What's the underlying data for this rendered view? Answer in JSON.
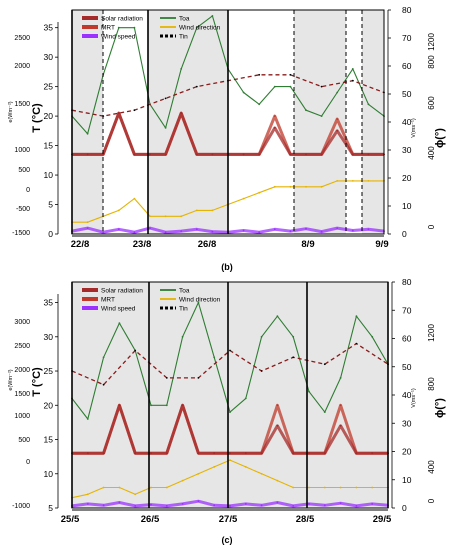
{
  "chart_data": [
    {
      "type": "line",
      "panel_label": "(b)",
      "categories": [
        "22/8",
        "23/8",
        "26/8",
        "8/9",
        "9/9"
      ],
      "left_axes": [
        {
          "label": "T (°C)",
          "ticks": [
            "0",
            "5",
            "10",
            "15",
            "20",
            "25",
            "30",
            "35"
          ]
        },
        {
          "label": "e(Wm⁻²)",
          "ticks": [
            "-1500",
            "-500",
            "0",
            "500",
            "1000",
            "1500",
            "2000",
            "2500"
          ]
        }
      ],
      "right_axes": [
        {
          "label": "V(ms⁻¹)",
          "ticks": [
            "0",
            "10",
            "20",
            "30",
            "40",
            "50",
            "60",
            "70",
            "80"
          ]
        },
        {
          "label": "ϕ(°)",
          "ticks": [
            "0",
            "400",
            "600",
            "800",
            "1200"
          ]
        }
      ],
      "legend": [
        {
          "name": "Solar radiation",
          "color": "#a52a2a",
          "style": "thick"
        },
        {
          "name": "Toa",
          "color": "#2e7d32",
          "style": "solid"
        },
        {
          "name": "MRT",
          "color": "#c0392b",
          "style": "thick"
        },
        {
          "name": "Wind direction",
          "color": "#e5b400",
          "style": "solid"
        },
        {
          "name": "Wind speed",
          "color": "#9b30ff",
          "style": "thick"
        },
        {
          "name": "Tin",
          "color": "#000000",
          "style": "dashed"
        }
      ],
      "series": [
        {
          "name": "Toa",
          "x": [
            0,
            5,
            10,
            15,
            20,
            25,
            30,
            35,
            40,
            45,
            50,
            55,
            60,
            65,
            70,
            75,
            80,
            85,
            90,
            95,
            100
          ],
          "y": [
            20,
            17,
            27,
            35,
            35,
            22,
            18,
            28,
            35,
            37,
            28,
            24,
            22,
            25,
            25,
            21,
            20,
            24,
            28,
            22,
            20
          ]
        },
        {
          "name": "Tin",
          "x": [
            0,
            10,
            20,
            30,
            40,
            50,
            60,
            70,
            80,
            90,
            100
          ],
          "y": [
            21,
            20,
            21,
            23,
            25,
            26,
            27,
            27,
            25,
            26,
            24
          ]
        },
        {
          "name": "MRT",
          "x": [
            0,
            5,
            10,
            15,
            20,
            25,
            30,
            35,
            40,
            45,
            50,
            55,
            60,
            65,
            70,
            75,
            80,
            85,
            90,
            95,
            100
          ],
          "y": [
            13.5,
            13.5,
            13.5,
            20.5,
            13.5,
            13.5,
            13.5,
            20.5,
            13.5,
            13.5,
            13.5,
            13.5,
            13.5,
            20,
            13.5,
            13.5,
            13.5,
            19.5,
            13.5,
            13.5,
            13.5
          ]
        },
        {
          "name": "Solar radiation",
          "x": [
            0,
            5,
            10,
            15,
            20,
            25,
            30,
            35,
            40,
            45,
            50,
            55,
            60,
            65,
            70,
            75,
            80,
            85,
            90,
            95,
            100
          ],
          "y": [
            13.5,
            13.5,
            13.5,
            20.5,
            13.5,
            13.5,
            13.5,
            20.5,
            13.5,
            13.5,
            13.5,
            13.5,
            13.5,
            18,
            13.5,
            13.5,
            13.5,
            17.5,
            13.5,
            13.5,
            13.5
          ]
        },
        {
          "name": "Wind direction",
          "x": [
            0,
            5,
            10,
            15,
            20,
            25,
            30,
            35,
            40,
            45,
            50,
            55,
            60,
            65,
            70,
            75,
            80,
            85,
            90,
            95,
            100
          ],
          "y": [
            2,
            2,
            3,
            4,
            6,
            3,
            3,
            3,
            4,
            4,
            5,
            6,
            7,
            8,
            8,
            8,
            8,
            9,
            9,
            9,
            9
          ]
        },
        {
          "name": "Wind speed",
          "x": [
            0,
            5,
            10,
            15,
            20,
            25,
            30,
            35,
            40,
            45,
            50,
            55,
            60,
            65,
            70,
            75,
            80,
            85,
            90,
            95,
            100
          ],
          "y": [
            0.5,
            1,
            0.3,
            0.8,
            0.3,
            1,
            0.3,
            0.5,
            0.8,
            0.4,
            0.3,
            0.6,
            0.3,
            0.8,
            0.5,
            0.9,
            0.4,
            1,
            0.6,
            0.8,
            0.5
          ]
        }
      ]
    },
    {
      "type": "line",
      "panel_label": "(c)",
      "categories": [
        "25/5",
        "26/5",
        "27/5",
        "28/5",
        "29/5"
      ],
      "left_axes": [
        {
          "label": "T (°C)",
          "ticks": [
            "5",
            "10",
            "15",
            "20",
            "25",
            "30",
            "35"
          ]
        },
        {
          "label": "e(Wm⁻²)",
          "ticks": [
            "-1000",
            "0",
            "500",
            "1000",
            "1500",
            "2000",
            "2500",
            "3000"
          ]
        }
      ],
      "right_axes": [
        {
          "label": "V(ms⁻¹)",
          "ticks": [
            "0",
            "10",
            "20",
            "30",
            "40",
            "50",
            "60",
            "70",
            "80"
          ]
        },
        {
          "label": "ϕ(°)",
          "ticks": [
            "0",
            "400",
            "800",
            "1200"
          ]
        }
      ],
      "legend": [
        {
          "name": "Solar radiation",
          "color": "#a52a2a",
          "style": "thick"
        },
        {
          "name": "Toa",
          "color": "#2e7d32",
          "style": "solid"
        },
        {
          "name": "MRT",
          "color": "#c0392b",
          "style": "thick"
        },
        {
          "name": "Wind direction",
          "color": "#e5b400",
          "style": "solid"
        },
        {
          "name": "Wind speed",
          "color": "#9b30ff",
          "style": "thick"
        },
        {
          "name": "Tin",
          "color": "#000000",
          "style": "dashed"
        }
      ],
      "series": [
        {
          "name": "Toa",
          "x": [
            0,
            5,
            10,
            15,
            20,
            25,
            30,
            35,
            40,
            45,
            50,
            55,
            60,
            65,
            70,
            75,
            80,
            85,
            90,
            95,
            100
          ],
          "y": [
            21,
            18,
            27,
            32,
            28,
            20,
            20,
            30,
            35,
            27,
            19,
            21,
            30,
            33,
            30,
            22,
            19,
            24,
            33,
            30,
            26
          ]
        },
        {
          "name": "Tin",
          "x": [
            0,
            10,
            20,
            30,
            40,
            50,
            60,
            70,
            80,
            90,
            100
          ],
          "y": [
            25,
            23,
            28,
            24,
            24,
            28,
            25,
            27,
            26,
            29,
            26
          ]
        },
        {
          "name": "MRT",
          "x": [
            0,
            5,
            10,
            15,
            20,
            25,
            30,
            35,
            40,
            45,
            50,
            55,
            60,
            65,
            70,
            75,
            80,
            85,
            90,
            95,
            100
          ],
          "y": [
            13,
            13,
            13,
            20,
            13,
            13,
            13,
            20,
            13,
            13,
            13,
            13,
            13,
            20,
            13,
            13,
            13,
            20,
            13,
            13,
            13
          ]
        },
        {
          "name": "Solar radiation",
          "x": [
            0,
            5,
            10,
            15,
            20,
            25,
            30,
            35,
            40,
            45,
            50,
            55,
            60,
            65,
            70,
            75,
            80,
            85,
            90,
            95,
            100
          ],
          "y": [
            13,
            13,
            13,
            20,
            13,
            13,
            13,
            20,
            13,
            13,
            13,
            13,
            13,
            17,
            13,
            13,
            13,
            17,
            13,
            13,
            13
          ]
        },
        {
          "name": "Wind direction",
          "x": [
            0,
            5,
            10,
            15,
            20,
            25,
            30,
            35,
            40,
            45,
            50,
            55,
            60,
            65,
            70,
            75,
            80,
            85,
            90,
            95,
            100
          ],
          "y": [
            6.5,
            7,
            8,
            8,
            7,
            8,
            8,
            9,
            10,
            11,
            12,
            11,
            10,
            9,
            8,
            8,
            8,
            8,
            8,
            8,
            8
          ]
        },
        {
          "name": "Wind speed",
          "x": [
            0,
            5,
            10,
            15,
            20,
            25,
            30,
            35,
            40,
            45,
            50,
            55,
            60,
            65,
            70,
            75,
            80,
            85,
            90,
            95,
            100
          ],
          "y": [
            5.3,
            5.6,
            5.4,
            5.8,
            5.3,
            5.5,
            5.3,
            5.6,
            6,
            5.4,
            5.3,
            5.6,
            5.4,
            5.8,
            5.3,
            5.6,
            5.4,
            5.7,
            5.3,
            5.6,
            5.4
          ]
        }
      ]
    }
  ]
}
